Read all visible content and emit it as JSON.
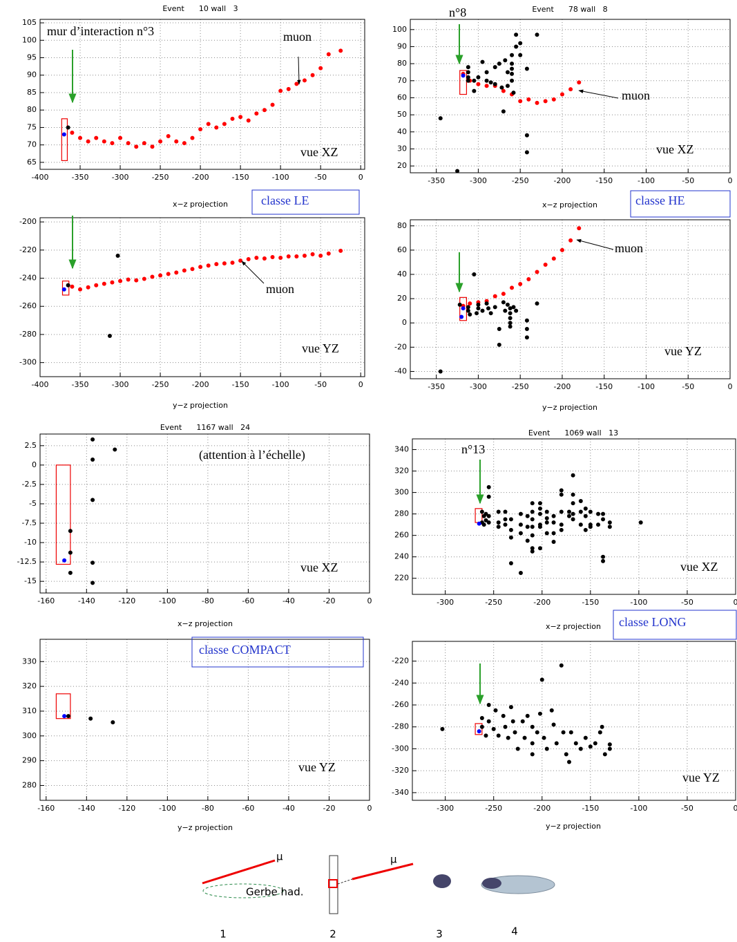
{
  "chart_data": [
    {
      "type": "scatter",
      "title": "Event      10 wall   3",
      "xlabel": "x−z projection",
      "xlim": [
        -400,
        5
      ],
      "ylim": [
        63,
        106
      ],
      "xticks": [
        -400,
        -350,
        -300,
        -250,
        -200,
        -150,
        -100,
        -50,
        0
      ],
      "yticks": [
        65,
        70,
        75,
        80,
        85,
        90,
        95,
        100,
        105
      ],
      "grid": true,
      "annotations": [
        "mur d’interaction n°3",
        "muon",
        "vue XZ",
        "classe LE"
      ],
      "box": {
        "x": [
          -373,
          -366
        ],
        "y": [
          65.5,
          77.5
        ]
      },
      "series": [
        {
          "color": "#ff0000",
          "x": [
            -360,
            -350,
            -340,
            -330,
            -320,
            -310,
            -300,
            -290,
            -280,
            -270,
            -260,
            -250,
            -240,
            -230,
            -220,
            -210,
            -200,
            -190,
            -180,
            -170,
            -160,
            -150,
            -140,
            -130,
            -120,
            -110,
            -100,
            -90,
            -80,
            -70,
            -60,
            -50,
            -40,
            -25
          ],
          "values": [
            73.5,
            72,
            71,
            72,
            71,
            70.5,
            72,
            70.5,
            69.5,
            70.5,
            69.5,
            71,
            72.5,
            71,
            70.5,
            72,
            74.5,
            76,
            75,
            76,
            77.5,
            78,
            77,
            79,
            80,
            81.5,
            85.5,
            86,
            87.5,
            88.5,
            90,
            92,
            96,
            97
          ]
        },
        {
          "color": "#000000",
          "x": [
            -365
          ],
          "values": [
            75
          ]
        },
        {
          "color": "#0000ff",
          "x": [
            -370
          ],
          "values": [
            73
          ]
        }
      ]
    },
    {
      "type": "scatter",
      "xlabel": "y−z projection",
      "xlim": [
        -400,
        5
      ],
      "ylim": [
        -310,
        -197
      ],
      "xticks": [
        -400,
        -350,
        -300,
        -250,
        -200,
        -150,
        -100,
        -50,
        0
      ],
      "yticks": [
        -300,
        -280,
        -260,
        -240,
        -220,
        -200
      ],
      "grid": true,
      "annotations": [
        "muon",
        "vue YZ"
      ],
      "box": {
        "x": [
          -372,
          -364
        ],
        "y": [
          -252,
          -242
        ]
      },
      "series": [
        {
          "color": "#ff0000",
          "x": [
            -360,
            -350,
            -340,
            -330,
            -320,
            -310,
            -300,
            -290,
            -280,
            -270,
            -260,
            -250,
            -240,
            -230,
            -220,
            -210,
            -200,
            -190,
            -180,
            -170,
            -160,
            -150,
            -140,
            -130,
            -120,
            -110,
            -100,
            -90,
            -80,
            -70,
            -60,
            -50,
            -40,
            -25
          ],
          "values": [
            -246,
            -248,
            -246.5,
            -245,
            -244,
            -243,
            -242,
            -241,
            -241.5,
            -240.5,
            -239,
            -238,
            -237,
            -236,
            -234.5,
            -233.5,
            -232,
            -231,
            -230,
            -229.5,
            -229,
            -227.5,
            -226.5,
            -225.5,
            -226,
            -225,
            -225.5,
            -224.5,
            -224.5,
            -224,
            -223,
            -224,
            -222.5,
            -220.5
          ]
        },
        {
          "color": "#000000",
          "x": [
            -365,
            -303,
            -313
          ],
          "values": [
            -245,
            -224,
            -281
          ]
        },
        {
          "color": "#0000ff",
          "x": [
            -370
          ],
          "values": [
            -248
          ]
        }
      ]
    },
    {
      "type": "scatter",
      "title": "Event      78 wall   8",
      "xlabel": "x−z projection",
      "xlim": [
        -381,
        0
      ],
      "ylim": [
        16,
        106
      ],
      "xticks": [
        -350,
        -300,
        -250,
        -200,
        -150,
        -100,
        -50,
        0
      ],
      "yticks": [
        20,
        30,
        40,
        50,
        60,
        70,
        80,
        90,
        100
      ],
      "grid": true,
      "annotations": [
        "n°8",
        "muon",
        "vue XZ",
        "classe HE"
      ],
      "box": {
        "x": [
          -322,
          -314
        ],
        "y": [
          62,
          76
        ]
      },
      "series": [
        {
          "color": "#ff0000",
          "x": [
            -318,
            -310,
            -300,
            -290,
            -280,
            -270,
            -260,
            -250,
            -240,
            -230,
            -220,
            -210,
            -200,
            -190,
            -180
          ],
          "values": [
            74,
            70,
            68,
            67,
            67,
            64,
            62,
            58,
            59,
            57,
            58,
            59,
            62,
            65,
            69
          ]
        },
        {
          "color": "#000000",
          "x": [
            -345,
            -325,
            -312,
            -312,
            -312,
            -312,
            -305,
            -305,
            -300,
            -295,
            -290,
            -290,
            -285,
            -280,
            -280,
            -275,
            -272,
            -270,
            -268,
            -265,
            -265,
            -260,
            -260,
            -260,
            -260,
            -260,
            -258,
            -255,
            -255,
            -250,
            -250,
            -242,
            -242,
            -242,
            -230
          ],
          "values": [
            48,
            17,
            78,
            75,
            72,
            70,
            70,
            64,
            72,
            81,
            75,
            70,
            69,
            68,
            78,
            80,
            66,
            52,
            82,
            75,
            67,
            85,
            80,
            77,
            74,
            70,
            63,
            90,
            97,
            92,
            85,
            77,
            38,
            28,
            97
          ]
        },
        {
          "color": "#0000ff",
          "x": [
            -318
          ],
          "values": [
            73
          ]
        }
      ]
    },
    {
      "type": "scatter",
      "xlabel": "y−z projection",
      "xlim": [
        -381,
        0
      ],
      "ylim": [
        -46,
        85
      ],
      "xticks": [
        -350,
        -300,
        -250,
        -200,
        -150,
        -100,
        -50,
        0
      ],
      "yticks": [
        -40,
        -20,
        0,
        20,
        40,
        60,
        80
      ],
      "grid": true,
      "annotations": [
        "muon",
        "vue YZ"
      ],
      "box": {
        "x": [
          -322,
          -314
        ],
        "y": [
          2,
          21
        ]
      },
      "series": [
        {
          "color": "#ff0000",
          "x": [
            -318,
            -310,
            -300,
            -290,
            -280,
            -270,
            -260,
            -250,
            -240,
            -230,
            -220,
            -210,
            -200,
            -190,
            -180
          ],
          "values": [
            14,
            16,
            17,
            18,
            22,
            24,
            29,
            32,
            36,
            42,
            48,
            53,
            60,
            68,
            78
          ]
        },
        {
          "color": "#000000",
          "x": [
            -345,
            -322,
            -312,
            -312,
            -310,
            -305,
            -302,
            -300,
            -300,
            -295,
            -290,
            -288,
            -285,
            -280,
            -275,
            -275,
            -270,
            -268,
            -265,
            -262,
            -262,
            -262,
            -262,
            -262,
            -258,
            -255,
            -242,
            -242,
            -242,
            -230
          ],
          "values": [
            -40,
            15,
            13,
            10,
            7,
            40,
            8,
            12,
            15,
            10,
            16,
            12,
            8,
            13,
            -5,
            -18,
            17,
            10,
            15,
            12,
            8,
            4,
            0,
            -3,
            13,
            10,
            2,
            -5,
            -12,
            16
          ]
        },
        {
          "color": "#0000ff",
          "x": [
            -318,
            -320
          ],
          "values": [
            12,
            5
          ]
        }
      ]
    },
    {
      "type": "scatter",
      "title": "Event      1167 wall   24",
      "xlabel": "x−z projection",
      "xlim": [
        -163,
        0
      ],
      "ylim": [
        -16.5,
        4
      ],
      "xticks": [
        -160,
        -140,
        -120,
        -100,
        -80,
        -60,
        -40,
        -20,
        0
      ],
      "yticks": [
        2.5,
        0,
        -2.5,
        -5,
        -7.5,
        -10,
        -12.5,
        -15
      ],
      "grid": true,
      "annotations": [
        "(attention à l’échelle)",
        "vue XZ"
      ],
      "box": {
        "x": [
          -155,
          -148
        ],
        "y": [
          -12.8,
          0
        ]
      },
      "series": [
        {
          "color": "#000000",
          "x": [
            -137,
            -126,
            -137,
            -137,
            -148,
            -148,
            -137,
            -148,
            -137
          ],
          "values": [
            3.3,
            2,
            0.7,
            -4.5,
            -8.5,
            -11.3,
            -12.6,
            -13.9,
            -15.2
          ]
        },
        {
          "color": "#0000ff",
          "x": [
            -151
          ],
          "values": [
            -12.3
          ]
        }
      ]
    },
    {
      "type": "scatter",
      "xlabel": "y−z projection",
      "xlim": [
        -163,
        0
      ],
      "ylim": [
        274,
        339
      ],
      "xticks": [
        -160,
        -140,
        -120,
        -100,
        -80,
        -60,
        -40,
        -20,
        0
      ],
      "yticks": [
        280,
        290,
        300,
        310,
        320,
        330
      ],
      "grid": true,
      "annotations": [
        "classe COMPACT",
        "vue YZ"
      ],
      "box": {
        "x": [
          -155,
          -148
        ],
        "y": [
          307,
          317
        ]
      },
      "series": [
        {
          "color": "#000000",
          "x": [
            -149,
            -138,
            -127
          ],
          "values": [
            308,
            307,
            305.5
          ]
        },
        {
          "color": "#0000ff",
          "x": [
            -151
          ],
          "values": [
            308
          ]
        }
      ]
    },
    {
      "type": "scatter",
      "title": "Event      1069 wall   13",
      "xlabel": "x−z projection",
      "xlim": [
        -334,
        0
      ],
      "ylim": [
        205,
        350
      ],
      "xticks": [
        -300,
        -250,
        -200,
        -150,
        -100,
        -50,
        0
      ],
      "yticks": [
        220,
        240,
        260,
        280,
        300,
        320,
        340
      ],
      "grid": true,
      "annotations": [
        "n°13",
        "vue XZ",
        "classe LONG"
      ],
      "box": {
        "x": [
          -269,
          -262
        ],
        "y": [
          272,
          285
        ]
      },
      "series": [
        {
          "color": "#000000",
          "x": [
            -262,
            -262,
            -260,
            -260,
            -258,
            -258,
            -255,
            -255,
            -255,
            -255,
            -245,
            -245,
            -245,
            -238,
            -238,
            -238,
            -232,
            -232,
            -232,
            -232,
            -222,
            -222,
            -222,
            -222,
            -215,
            -215,
            -215,
            -210,
            -210,
            -210,
            -210,
            -210,
            -210,
            -210,
            -202,
            -202,
            -202,
            -202,
            -202,
            -202,
            -195,
            -195,
            -195,
            -195,
            -188,
            -188,
            -188,
            -188,
            -180,
            -180,
            -180,
            -180,
            -180,
            -172,
            -172,
            -168,
            -168,
            -168,
            -168,
            -168,
            -160,
            -160,
            -160,
            -155,
            -155,
            -155,
            -150,
            -150,
            -150,
            -142,
            -142,
            -137,
            -137,
            -137,
            -137,
            -130,
            -130,
            -98
          ],
          "values": [
            282,
            272,
            278,
            270,
            280,
            274,
            305,
            296,
            278,
            272,
            282,
            272,
            268,
            282,
            275,
            270,
            275,
            265,
            258,
            234,
            280,
            270,
            262,
            225,
            278,
            268,
            255,
            290,
            282,
            275,
            268,
            260,
            248,
            245,
            290,
            285,
            280,
            270,
            268,
            248,
            282,
            276,
            272,
            262,
            278,
            272,
            262,
            254,
            302,
            298,
            282,
            270,
            265,
            282,
            278,
            316,
            298,
            290,
            280,
            275,
            292,
            282,
            270,
            285,
            278,
            265,
            282,
            270,
            268,
            280,
            270,
            280,
            275,
            240,
            236,
            272,
            268,
            272
          ]
        },
        {
          "color": "#0000ff",
          "x": [
            -265
          ],
          "values": [
            271
          ]
        }
      ]
    },
    {
      "type": "scatter",
      "xlabel": "y−z projection",
      "xlim": [
        -334,
        0
      ],
      "ylim": [
        -347,
        -202
      ],
      "xticks": [
        -300,
        -250,
        -200,
        -150,
        -100,
        -50,
        0
      ],
      "yticks": [
        -340,
        -320,
        -300,
        -280,
        -260,
        -240,
        -220
      ],
      "grid": true,
      "annotations": [
        "vue YZ"
      ],
      "box": {
        "x": [
          -269,
          -262
        ],
        "y": [
          -287,
          -277
        ]
      },
      "series": [
        {
          "color": "#000000",
          "x": [
            -303,
            -262,
            -262,
            -258,
            -255,
            -255,
            -250,
            -248,
            -245,
            -240,
            -238,
            -235,
            -232,
            -230,
            -228,
            -225,
            -220,
            -218,
            -215,
            -210,
            -210,
            -210,
            -205,
            -202,
            -200,
            -198,
            -195,
            -190,
            -188,
            -185,
            -180,
            -178,
            -175,
            -172,
            -170,
            -165,
            -160,
            -155,
            -150,
            -145,
            -140,
            -138,
            -135,
            -130,
            -130
          ],
          "values": [
            -282,
            -272,
            -280,
            -288,
            -260,
            -275,
            -282,
            -265,
            -288,
            -270,
            -280,
            -290,
            -262,
            -275,
            -285,
            -300,
            -275,
            -290,
            -270,
            -280,
            -295,
            -305,
            -285,
            -268,
            -237,
            -290,
            -300,
            -265,
            -278,
            -295,
            -224,
            -285,
            -305,
            -312,
            -285,
            -295,
            -300,
            -290,
            -298,
            -295,
            -285,
            -280,
            -305,
            -300,
            -296
          ]
        },
        {
          "color": "#0000ff",
          "x": [
            -265
          ],
          "values": [
            -284
          ]
        }
      ]
    }
  ],
  "diagram": {
    "labels": [
      "μ",
      "Gerbe had.",
      "μ"
    ],
    "numbers": [
      "1",
      "2",
      "3",
      "4"
    ]
  }
}
